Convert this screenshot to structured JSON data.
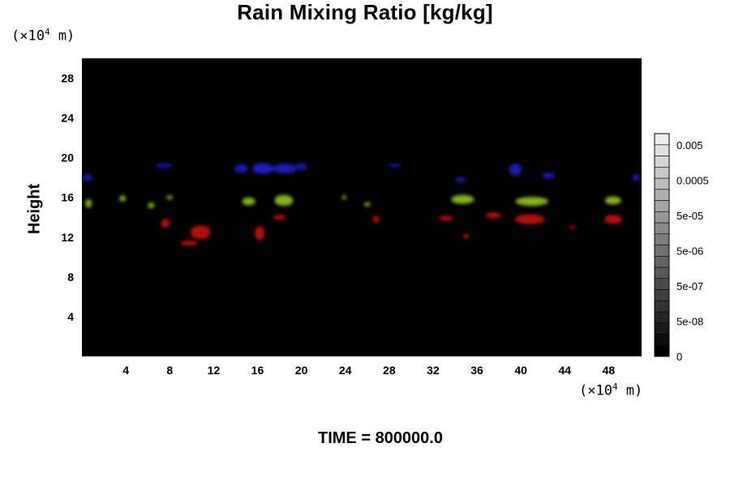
{
  "chart_data": {
    "type": "heatmap",
    "title": "Rain Mixing Ratio [kg/kg]",
    "ylabel": "Height",
    "y_unit": {
      "prefix": "(×10",
      "exp": "4",
      "suffix": " m)"
    },
    "x_unit": {
      "prefix": "(×10",
      "exp": "4",
      "suffix": " m)"
    },
    "xlim": [
      0,
      51
    ],
    "ylim": [
      0,
      30
    ],
    "x_ticks": [
      "4",
      "8",
      "12",
      "16",
      "20",
      "24",
      "28",
      "32",
      "36",
      "40",
      "44",
      "48"
    ],
    "y_ticks": [
      "4",
      "8",
      "12",
      "16",
      "20",
      "24",
      "28"
    ],
    "background_color": "#000000",
    "colorbar": {
      "ticks": [
        "0",
        "5e-08",
        "5e-07",
        "5e-06",
        "5e-05",
        "0.0005",
        "0.005"
      ],
      "levels": 20
    },
    "blobs": [
      {
        "x": 0.5,
        "y": 18.0,
        "w": 0.8,
        "h": 0.7,
        "color": "#1515c0"
      },
      {
        "x": 7.5,
        "y": 19.2,
        "w": 1.5,
        "h": 0.5,
        "color": "#1010a0"
      },
      {
        "x": 14.5,
        "y": 18.9,
        "w": 1.2,
        "h": 0.9,
        "color": "#1515b8"
      },
      {
        "x": 16.5,
        "y": 18.9,
        "w": 2.0,
        "h": 1.1,
        "color": "#1a1ab8"
      },
      {
        "x": 18.5,
        "y": 18.9,
        "w": 2.2,
        "h": 1.0,
        "color": "#1a1ab0"
      },
      {
        "x": 20.0,
        "y": 19.1,
        "w": 1.0,
        "h": 0.7,
        "color": "#1414a8"
      },
      {
        "x": 28.5,
        "y": 19.2,
        "w": 1.2,
        "h": 0.4,
        "color": "#1010a0"
      },
      {
        "x": 34.5,
        "y": 17.8,
        "w": 1.0,
        "h": 0.5,
        "color": "#1a1ab0"
      },
      {
        "x": 39.5,
        "y": 18.8,
        "w": 1.1,
        "h": 1.2,
        "color": "#1a1ab0"
      },
      {
        "x": 42.5,
        "y": 18.2,
        "w": 1.1,
        "h": 0.6,
        "color": "#1a1ab0"
      },
      {
        "x": 50.5,
        "y": 18.0,
        "w": 0.6,
        "h": 0.7,
        "color": "#1a1ab8"
      },
      {
        "x": 0.6,
        "y": 15.4,
        "w": 0.6,
        "h": 0.9,
        "color": "#7fae1c"
      },
      {
        "x": 3.7,
        "y": 15.9,
        "w": 0.6,
        "h": 0.6,
        "color": "#7fae1c"
      },
      {
        "x": 6.3,
        "y": 15.2,
        "w": 0.6,
        "h": 0.6,
        "color": "#7fae1c"
      },
      {
        "x": 8.0,
        "y": 16.0,
        "w": 0.6,
        "h": 0.4,
        "color": "#7fae1c"
      },
      {
        "x": 15.2,
        "y": 15.6,
        "w": 1.2,
        "h": 0.8,
        "color": "#7fae1c"
      },
      {
        "x": 18.4,
        "y": 15.7,
        "w": 1.7,
        "h": 1.1,
        "color": "#86b21e"
      },
      {
        "x": 23.9,
        "y": 16.0,
        "w": 0.4,
        "h": 0.4,
        "color": "#7fae1c"
      },
      {
        "x": 26.0,
        "y": 15.3,
        "w": 0.6,
        "h": 0.4,
        "color": "#7fae1c"
      },
      {
        "x": 34.7,
        "y": 15.8,
        "w": 2.1,
        "h": 0.9,
        "color": "#86b21e"
      },
      {
        "x": 41.0,
        "y": 15.6,
        "w": 3.0,
        "h": 0.9,
        "color": "#86b21e"
      },
      {
        "x": 48.4,
        "y": 15.7,
        "w": 1.5,
        "h": 0.8,
        "color": "#86b21e"
      },
      {
        "x": 7.6,
        "y": 13.4,
        "w": 0.8,
        "h": 0.9,
        "color": "#b50f0f"
      },
      {
        "x": 10.8,
        "y": 12.5,
        "w": 1.8,
        "h": 1.4,
        "color": "#b50f0f"
      },
      {
        "x": 9.8,
        "y": 11.4,
        "w": 1.6,
        "h": 0.5,
        "color": "#b50f0f"
      },
      {
        "x": 16.2,
        "y": 12.4,
        "w": 0.9,
        "h": 1.4,
        "color": "#b50f0f"
      },
      {
        "x": 18.0,
        "y": 14.0,
        "w": 1.2,
        "h": 0.5,
        "color": "#b50f0f"
      },
      {
        "x": 26.8,
        "y": 13.8,
        "w": 0.6,
        "h": 0.7,
        "color": "#b50f0f"
      },
      {
        "x": 33.2,
        "y": 13.9,
        "w": 1.3,
        "h": 0.5,
        "color": "#b50f0f"
      },
      {
        "x": 35.0,
        "y": 12.1,
        "w": 0.5,
        "h": 0.5,
        "color": "#b50f0f"
      },
      {
        "x": 37.5,
        "y": 14.2,
        "w": 1.4,
        "h": 0.6,
        "color": "#b50f0f"
      },
      {
        "x": 40.8,
        "y": 13.8,
        "w": 2.7,
        "h": 1.0,
        "color": "#b50f0f"
      },
      {
        "x": 44.7,
        "y": 13.0,
        "w": 0.7,
        "h": 0.3,
        "color": "#b50f0f"
      },
      {
        "x": 48.4,
        "y": 13.8,
        "w": 1.6,
        "h": 0.9,
        "color": "#b50f0f"
      }
    ]
  },
  "footer": {
    "label": "TIME = 800000.0"
  }
}
